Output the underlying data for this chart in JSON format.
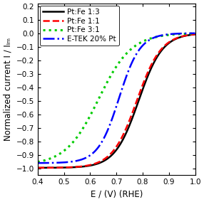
{
  "xlim": [
    0.4,
    1.0
  ],
  "ylim": [
    -1.05,
    0.22
  ],
  "xlabel": "E / (V) (RHE)",
  "ylabel": "Normalized current I / Iₗₘ",
  "xticks": [
    0.4,
    0.5,
    0.6,
    0.7,
    0.8,
    0.9,
    1.0
  ],
  "yticks": [
    -1.0,
    -0.9,
    -0.8,
    -0.7,
    -0.6,
    -0.5,
    -0.4,
    -0.3,
    -0.2,
    -0.1,
    0.0,
    0.1,
    0.2
  ],
  "series": [
    {
      "label": "Pt:Fe 1:3",
      "color": "black",
      "linestyle": "-",
      "linewidth": 1.8,
      "E0": 0.785,
      "k": 22.0,
      "ymin": -0.995,
      "ymax": 0.0
    },
    {
      "label": "Pt:Fe 1:1",
      "color": "red",
      "linestyle": "--",
      "linewidth": 1.8,
      "E0": 0.778,
      "k": 21.5,
      "ymin": -0.995,
      "ymax": 0.0
    },
    {
      "label": "Pt:Fe 3:1",
      "color": "#00cc00",
      "linestyle": ":",
      "linewidth": 2.2,
      "E0": 0.632,
      "k": 16.0,
      "ymin": -0.975,
      "ymax": 0.0
    },
    {
      "label": "E-TEK 20% Pt",
      "color": "blue",
      "linestyle": "-.",
      "linewidth": 1.8,
      "E0": 0.71,
      "k": 25.0,
      "ymin": -0.96,
      "ymax": 0.0
    }
  ],
  "legend_fontsize": 7.5,
  "tick_fontsize": 7.5,
  "label_fontsize": 8.5,
  "figsize": [
    2.86,
    2.84
  ],
  "dpi": 100
}
